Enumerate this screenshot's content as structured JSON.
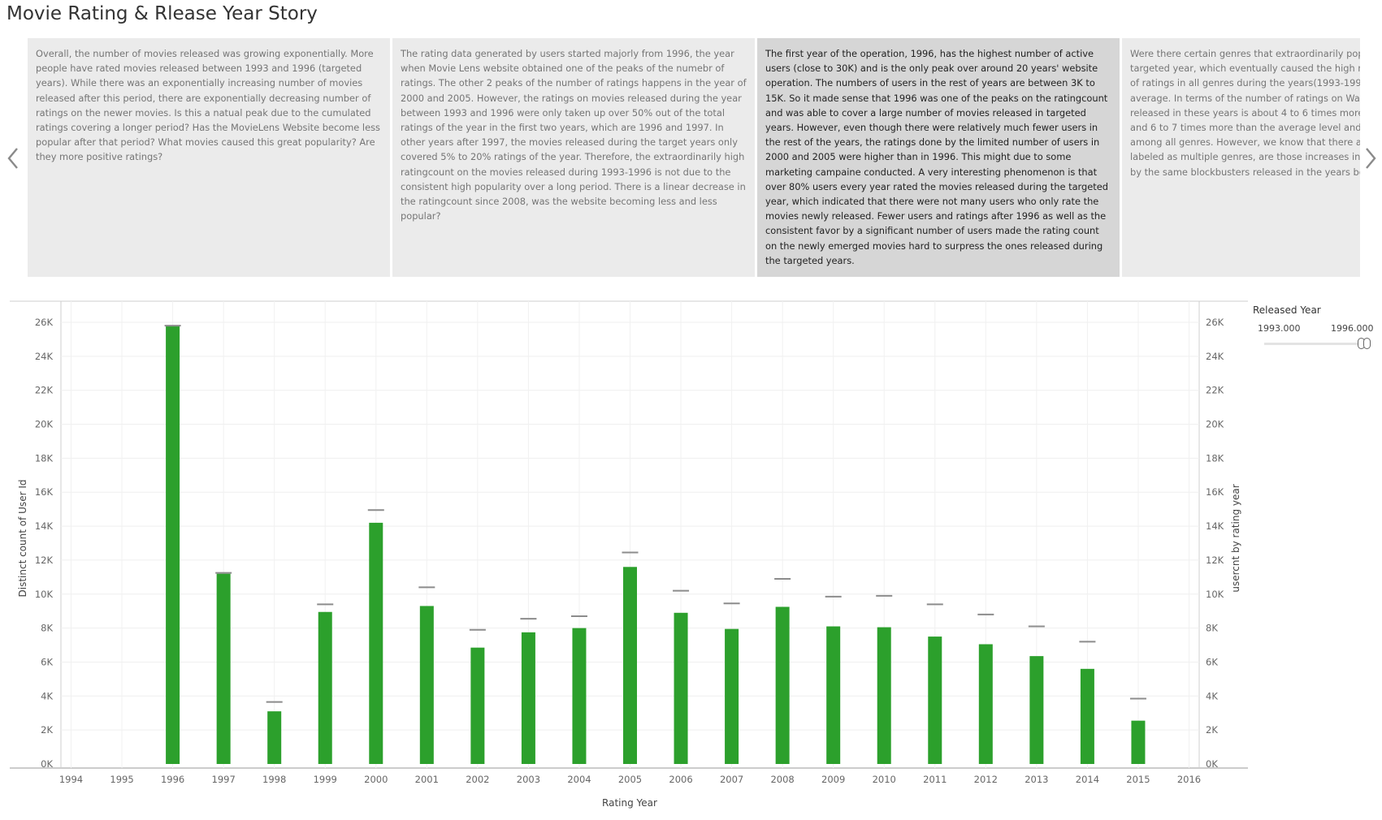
{
  "page": {
    "title": "Movie Rating & Rlease Year Story"
  },
  "story": {
    "cards": [
      {
        "text": "Overall, the number of movies released was growing exponentially. More people have rated movies released between 1993 and 1996 (targeted years). While there was an exponentially increasing number of movies released after this period, there are exponentially decreasing number of ratings on the newer movies. Is this a natual peak due to the cumulated ratings covering a longer period? Has the MovieLens Website become less popular after that period? What movies caused this great popularity? Are they more positive ratings?",
        "selected": false
      },
      {
        "text": "The rating data generated by users started majorly from 1996, the year when Movie Lens website obtained one of the peaks of the numebr of ratings. The other 2 peaks of the number of ratings happens in the year of 2000 and 2005. However, the ratings on movies released during the year between 1993 and 1996 were only taken up over 50% out of the total ratings of the year in the first two years, which are 1996 and 1997. In other years after 1997, the movies released during the target years only covered  5% to 20% ratings of the year. Therefore, the extraordinarily high ratingcount on the movies released during 1993-1996 is not due to the consistent high popularity over a long period. There is a linear decrease in the ratingcount since 2008, was the website becoming less and less popular?",
        "selected": false
      },
      {
        "text": "The first year of the operation, 1996, has the highest number of active users (close to 30K) and is the only peak over around 20 years' website operation. The numbers of users in the rest of years are between 3K to 15K. So it made sense that 1996 was one of the peaks on the ratingcount and was able to cover a large number of movies released in targeted years. However, even though there were relatively much fewer users in the rest of the years, the ratings done by the limited number of users in 2000 and 2005 were higher than in 1996. This might due to some marketing campaine conducted. A very interesting phenomenon is that over 80% users every year rated the movies released during the targeted year, which indicated that there were not many users who only rate the movies newly released. Fewer users and ratings after 1996 as well as the consistent favor by a significant number of users made the rating count on the newly emerged movies hard to surpress the ones released during the targeted years.",
        "selected": true
      },
      {
        "text": "Were there certain genres that extraordinarily popular released in the targeted year, which eventually caused the high ratingcount? The number of ratings in all genres during the years(1993-1996) are all above the average. In terms of the number of ratings on War and Western movies released in these years is about 4 to 6 times more than the average level, and 6 to 7 times more than the average level and has the most ratings among all genres. However, we know that there are movies that are labeled as multiple genres, are those increases in different genres caused by the same blockbusters released in the years between 1993 and 1996?",
        "selected": false
      }
    ]
  },
  "filter": {
    "title": "Released Year",
    "min_label": "1993.000",
    "max_label": "1996.000",
    "range": [
      1993,
      1996
    ],
    "selected": [
      1995.85,
      1996
    ]
  },
  "chart_data": {
    "type": "bar",
    "xlabel": "Rating Year",
    "ylabel": "Distinct count of User Id",
    "ylabel_right": "usercnt by rating year",
    "x_ticks": [
      1994,
      1995,
      1996,
      1997,
      1998,
      1999,
      2000,
      2001,
      2002,
      2003,
      2004,
      2005,
      2006,
      2007,
      2008,
      2009,
      2010,
      2011,
      2012,
      2013,
      2014,
      2015,
      2016
    ],
    "y_ticks": [
      "0K",
      "2K",
      "4K",
      "6K",
      "8K",
      "10K",
      "12K",
      "14K",
      "16K",
      "18K",
      "20K",
      "22K",
      "24K",
      "26K"
    ],
    "ylim": [
      0,
      26000
    ],
    "xlim": [
      1993.8,
      2016.2
    ],
    "categories": [
      1996,
      1997,
      1998,
      1999,
      2000,
      2001,
      2002,
      2003,
      2004,
      2005,
      2006,
      2007,
      2008,
      2009,
      2010,
      2011,
      2012,
      2013,
      2014,
      2015
    ],
    "series": [
      {
        "name": "Distinct count of User Id",
        "kind": "bar",
        "color": "#2ca02c",
        "values": [
          25800,
          11200,
          3100,
          8950,
          14200,
          9300,
          6850,
          7750,
          8000,
          11600,
          8900,
          7950,
          9250,
          8100,
          8050,
          7500,
          7050,
          6350,
          5600,
          2550
        ]
      },
      {
        "name": "usercnt by rating year",
        "kind": "reference",
        "color": "#999999",
        "values": [
          25800,
          11250,
          3650,
          9400,
          14950,
          10400,
          7900,
          8550,
          8700,
          12450,
          10200,
          9450,
          10900,
          9850,
          9900,
          9400,
          8800,
          8100,
          7200,
          3850
        ]
      }
    ],
    "grid": true
  }
}
